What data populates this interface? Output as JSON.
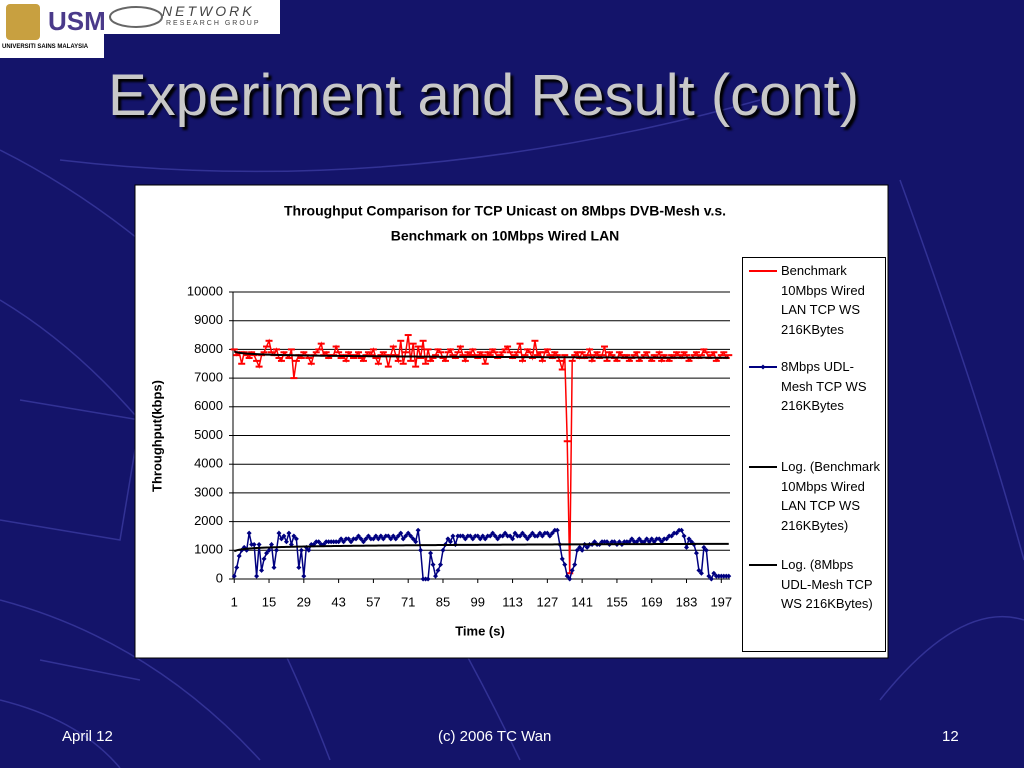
{
  "logo_text": {
    "usm": "USM",
    "university": "UNIVERSITI SAINS MALAYSIA",
    "group": "NETWORK",
    "group_sub": "RESEARCH GROUP"
  },
  "slide_title": "Experiment and Result (cont)",
  "footer": {
    "date": "April 12",
    "credit": "(c) 2006 TC Wan",
    "page": "12"
  },
  "chart_data": {
    "type": "line",
    "title": [
      "Throughput Comparison for TCP Unicast on 8Mbps DVB-Mesh v.s.",
      "Benchmark on 10Mbps Wired LAN"
    ],
    "x_label": "Time (s)",
    "y_label": "Throughput(kbps)",
    "categories": [
      1,
      null,
      null,
      null,
      null,
      null,
      null,
      null,
      null,
      null,
      null,
      null,
      null,
      null,
      15,
      null,
      null,
      null,
      null,
      null,
      null,
      null,
      null,
      null,
      null,
      null,
      null,
      null,
      29,
      null,
      null,
      null,
      null,
      null,
      null,
      null,
      null,
      null,
      null,
      null,
      null,
      null,
      43,
      null,
      null,
      null,
      null,
      null,
      null,
      null,
      null,
      null,
      null,
      null,
      null,
      null,
      57,
      null,
      null,
      null,
      null,
      null,
      null,
      null,
      null,
      null,
      null,
      null,
      null,
      null,
      71,
      null,
      null,
      null,
      null,
      null,
      null,
      null,
      null,
      null,
      null,
      null,
      null,
      null,
      85,
      null,
      null,
      null,
      null,
      null,
      null,
      null,
      null,
      null,
      null,
      null,
      null,
      null,
      99,
      null,
      null,
      null,
      null,
      null,
      null,
      null,
      null,
      null,
      null,
      null,
      null,
      null,
      113,
      null,
      null,
      null,
      null,
      null,
      null,
      null,
      null,
      null,
      null,
      null,
      null,
      null,
      127,
      null,
      null,
      null,
      null,
      null,
      null,
      null,
      null,
      null,
      null,
      null,
      null,
      null,
      141,
      null,
      null,
      null,
      null,
      null,
      null,
      null,
      null,
      null,
      null,
      null,
      null,
      null,
      155,
      null,
      null,
      null,
      null,
      null,
      null,
      null,
      null,
      null,
      null,
      null,
      null,
      null,
      169,
      null,
      null,
      null,
      null,
      null,
      null,
      null,
      null,
      null,
      null,
      null,
      null,
      null,
      183,
      null,
      null,
      null,
      null,
      null,
      null,
      null,
      null,
      null,
      null,
      null,
      null,
      null,
      197,
      null,
      null,
      null
    ],
    "series": [
      {
        "name": "Benchmark 10Mbps Wired LAN TCP WS 216KBytes",
        "color": "#ff0000",
        "marker": "dash",
        "trendline": {
          "type": "log",
          "name": "Log. (Benchmark 10Mbps Wired LAN TCP WS 216KBytes)",
          "color": "#000000"
        },
        "values": [
          8000,
          7800,
          7900,
          7500,
          7900,
          7800,
          7700,
          7900,
          7800,
          7600,
          7400,
          7800,
          7900,
          8100,
          8300,
          7900,
          7800,
          8000,
          7700,
          7600,
          7900,
          7800,
          7700,
          8000,
          7000,
          7600,
          7800,
          7700,
          7900,
          7800,
          7700,
          7500,
          7800,
          7900,
          8000,
          8200,
          7800,
          7900,
          7700,
          7800,
          7800,
          8100,
          7900,
          7700,
          7800,
          7600,
          7900,
          7800,
          7700,
          7800,
          7900,
          7700,
          7600,
          7800,
          7900,
          7800,
          8000,
          7700,
          7500,
          7800,
          7900,
          7800,
          7400,
          7800,
          8100,
          7800,
          7600,
          8300,
          7500,
          7900,
          8500,
          7600,
          8200,
          7400,
          8100,
          7700,
          8300,
          7500,
          8000,
          7600,
          7700,
          7800,
          8000,
          7900,
          7700,
          7600,
          7900,
          8000,
          7800,
          7700,
          7900,
          8100,
          7800,
          7600,
          7900,
          7800,
          8000,
          7800,
          7700,
          7900,
          7800,
          7500,
          7900,
          7800,
          8000,
          7900,
          7700,
          7800,
          7900,
          8000,
          8100,
          7900,
          7700,
          7800,
          7900,
          8200,
          7600,
          7800,
          8000,
          7900,
          7700,
          8300,
          7800,
          7900,
          7600,
          7900,
          8000,
          7800,
          7700,
          7900,
          7800,
          7600,
          7300,
          7800,
          4800,
          200,
          7600,
          7800,
          7900,
          7700,
          7900,
          7700,
          7800,
          8000,
          7600,
          7800,
          7900,
          7700,
          7800,
          8100,
          7600,
          7900,
          7800,
          7700,
          7600,
          7900,
          7800,
          7700,
          7800,
          7600,
          7700,
          7800,
          7900,
          7600,
          7700,
          7800,
          7900,
          7700,
          7600,
          7800,
          7700,
          7900,
          7600,
          7800,
          7700,
          7600,
          7800,
          7700,
          7900,
          7800,
          7700,
          7900,
          7800,
          7600,
          7700,
          7800,
          7900,
          7700,
          7800,
          8000,
          7900,
          7700,
          7800,
          7900,
          7600,
          7700,
          7800,
          7900,
          7700,
          7800
        ]
      },
      {
        "name": "8Mbps UDL-Mesh TCP WS 216KBytes",
        "color": "#000080",
        "marker": "diamond",
        "trendline": {
          "type": "log",
          "name": "Log. (8Mbps UDL-Mesh TCP WS 216KBytes)",
          "color": "#000000"
        },
        "values": [
          100,
          400,
          800,
          1000,
          1100,
          1000,
          1600,
          1200,
          1200,
          100,
          1200,
          300,
          700,
          900,
          1000,
          1200,
          400,
          1000,
          1600,
          1400,
          1500,
          1300,
          1600,
          1200,
          1500,
          1400,
          400,
          1000,
          100,
          1100,
          1000,
          1200,
          1200,
          1300,
          1300,
          1200,
          1200,
          1300,
          1300,
          1300,
          1300,
          1300,
          1300,
          1400,
          1300,
          1400,
          1400,
          1300,
          1400,
          1400,
          1500,
          1400,
          1300,
          1400,
          1500,
          1400,
          1400,
          1500,
          1400,
          1500,
          1400,
          1500,
          1500,
          1400,
          1500,
          1400,
          1500,
          1600,
          1400,
          1500,
          1600,
          1500,
          1400,
          1300,
          1700,
          1000,
          0,
          0,
          0,
          900,
          500,
          100,
          300,
          500,
          1000,
          1200,
          1400,
          1300,
          1500,
          1200,
          1500,
          1500,
          1500,
          1400,
          1500,
          1500,
          1400,
          1500,
          1500,
          1400,
          1500,
          1400,
          1500,
          1500,
          1600,
          1500,
          1400,
          1500,
          1500,
          1600,
          1500,
          1500,
          1400,
          1600,
          1500,
          1500,
          1600,
          1500,
          1400,
          1500,
          1600,
          1500,
          1500,
          1600,
          1500,
          1600,
          1600,
          1500,
          1600,
          1700,
          1700,
          1200,
          700,
          500,
          100,
          0,
          300,
          500,
          1000,
          1100,
          1000,
          1200,
          1100,
          1200,
          1200,
          1300,
          1200,
          1200,
          1300,
          1300,
          1300,
          1200,
          1300,
          1300,
          1200,
          1300,
          1200,
          1300,
          1300,
          1300,
          1400,
          1300,
          1300,
          1400,
          1300,
          1300,
          1400,
          1300,
          1400,
          1300,
          1400,
          1400,
          1300,
          1400,
          1400,
          1500,
          1500,
          1600,
          1600,
          1700,
          1700,
          1500,
          1100,
          1400,
          1300,
          1200,
          900,
          300,
          200,
          1100,
          1000,
          100,
          0,
          200,
          100,
          100,
          100,
          100,
          100,
          100
        ]
      }
    ],
    "ylim": [
      0,
      10000
    ],
    "yticks": [
      0,
      1000,
      2000,
      3000,
      4000,
      5000,
      6000,
      7000,
      8000,
      9000,
      10000
    ],
    "grid": true,
    "legend": "right"
  }
}
